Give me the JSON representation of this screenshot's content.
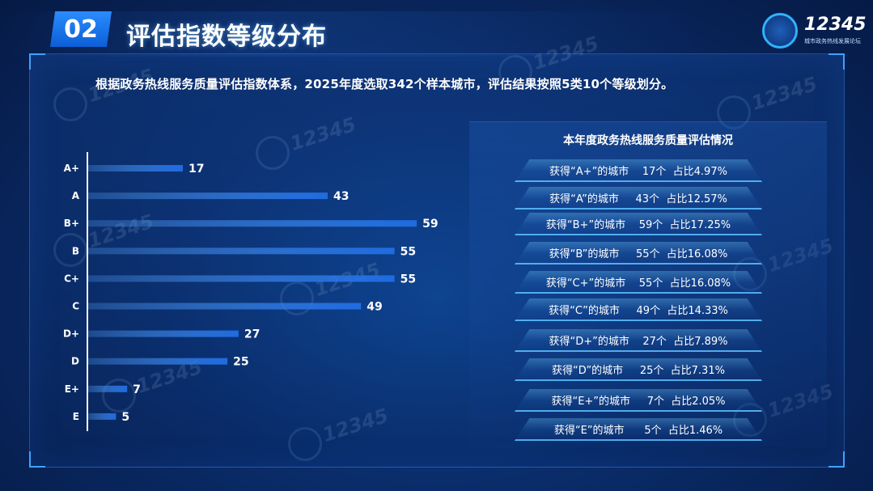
{
  "header": {
    "section_number": "02",
    "title": "评估指数等级分布"
  },
  "logo": {
    "number": "12345",
    "subtitle": "城市政务热线发展论坛"
  },
  "intro_text": "根据政务热线服务质量评估指数体系，2025年度选取342个样本城市，评估结果按照5类10个等级划分。",
  "panel": {
    "title": "本年度政务热线服务质量评估情况",
    "rows": [
      "获得“A+”的城市    17个  占比4.97%",
      "获得“A”的城市     43个  占比12.57%",
      "获得“B+”的城市    59个  占比17.25%",
      "获得“B”的城市     55个  占比16.08%",
      "获得“C+”的城市    55个  占比16.08%",
      "获得“C”的城市     49个  占比14.33%",
      "获得“D+”的城市    27个  占比7.89%",
      "获得“D”的城市     25个  占比7.31%",
      "获得“E+”的城市     7个  占比2.05%",
      "获得“E”的城市      5个  占比1.46%"
    ]
  },
  "colors": {
    "bar_start": "#0d4fb8",
    "bar_end": "#3f8dff",
    "accent": "#2a8cff"
  },
  "chart_data": {
    "type": "bar",
    "orientation": "horizontal",
    "categories": [
      "A+",
      "A",
      "B+",
      "B",
      "C+",
      "C",
      "D+",
      "D",
      "E+",
      "E"
    ],
    "values": [
      17,
      43,
      59,
      55,
      55,
      49,
      27,
      25,
      7,
      5
    ],
    "title": "",
    "xlabel": "",
    "ylabel": "",
    "xlim": [
      0,
      60
    ],
    "grid": false,
    "legend": "none"
  }
}
